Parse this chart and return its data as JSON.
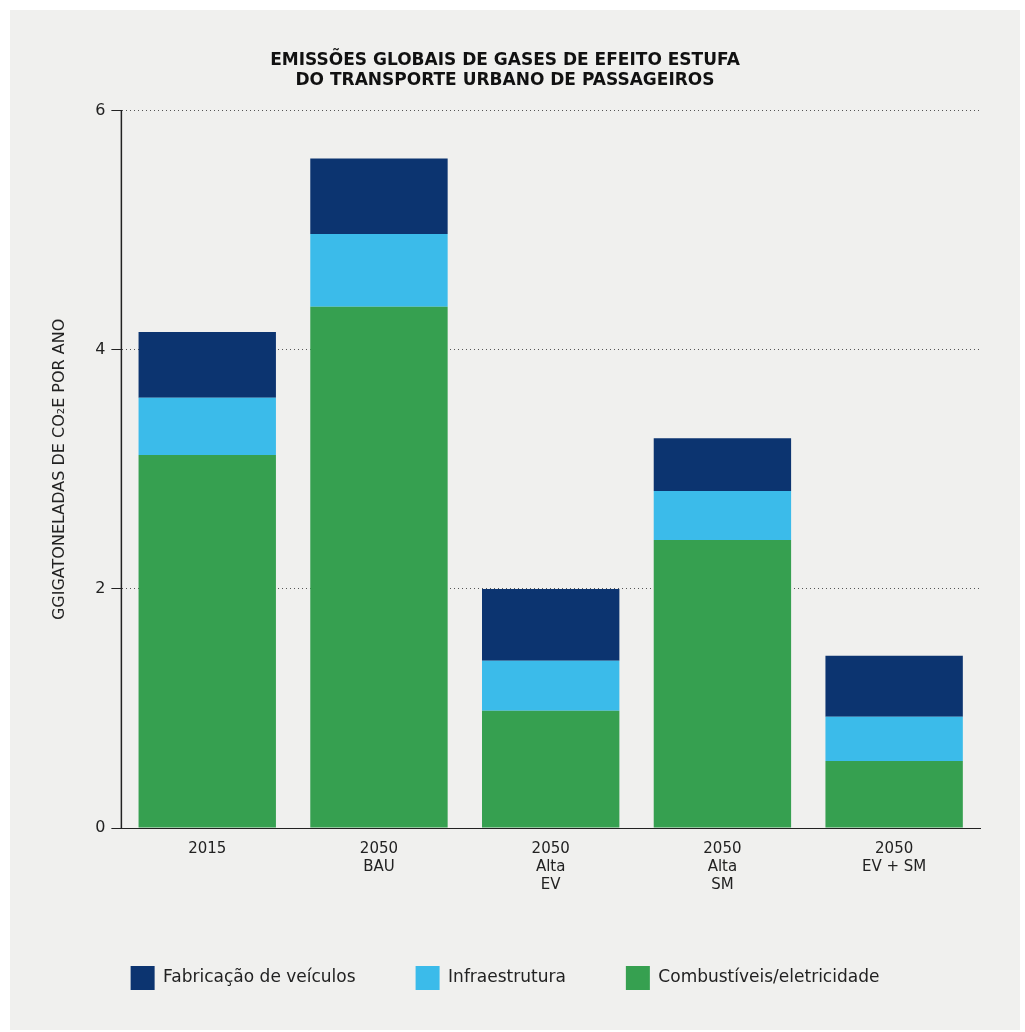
{
  "chart_data": {
    "type": "bar",
    "title": "EMISSÕES GLOBAIS DE GASES DE EFEITO ESTUFA\nDO TRANSPORTE URBANO DE PASSAGEIROS",
    "ylabel": "GGIGATONELADAS DE CO₂E POR ANO",
    "categories": [
      "2015",
      "2050\nBAU",
      "2050\nAlta\nEV",
      "2050\nAlta\nSM",
      "2050\nEV + SM"
    ],
    "series": [
      {
        "name": "Combustíveis/eletricidade",
        "color": "#36a050",
        "values": [
          3.12,
          4.36,
          0.98,
          2.41,
          0.56
        ]
      },
      {
        "name": "Infraestrutura",
        "color": "#3bbbea",
        "values": [
          0.48,
          0.61,
          0.42,
          0.41,
          0.37
        ]
      },
      {
        "name": "Fabricação de veículos",
        "color": "#0c3470",
        "values": [
          0.55,
          0.63,
          0.6,
          0.44,
          0.51
        ]
      }
    ],
    "stacked": true,
    "ylim": [
      0,
      6
    ],
    "yticks": [
      0,
      2,
      4,
      6
    ],
    "grid": "y",
    "legend": "bottom"
  }
}
